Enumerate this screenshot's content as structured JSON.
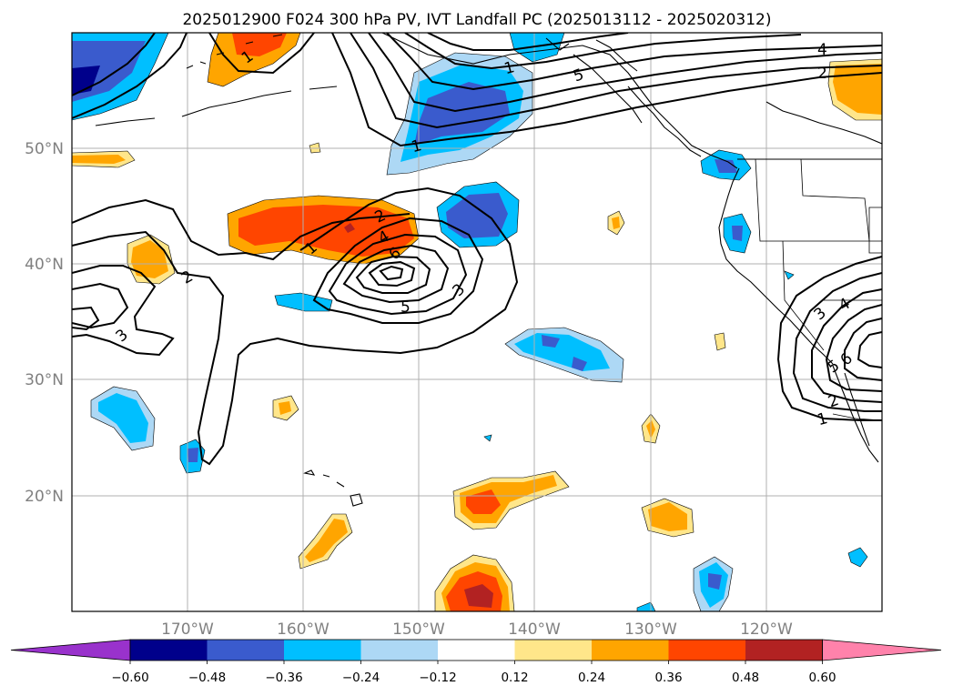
{
  "title": "2025012900 F024 300 hPa PV, IVT Landfall PC (2025013112 - 2025020312)",
  "lat_labels": [
    "50°N",
    "40°N",
    "30°N",
    "20°N"
  ],
  "lon_labels": [
    "170°W",
    "160°W",
    "150°W",
    "140°W",
    "130°W",
    "120°W"
  ],
  "colorbar": {
    "colors": [
      "#9932cc",
      "#00008b",
      "#3a5bcd",
      "#00bfff",
      "#add8f5",
      "#ffffff",
      "#ffe68a",
      "#ffa500",
      "#ff4500",
      "#b22222",
      "#ff82ab"
    ],
    "tick_labels": [
      "−0.60",
      "−0.48",
      "−0.36",
      "−0.24",
      "−0.12",
      "0.12",
      "0.24",
      "0.36",
      "0.48",
      "0.60"
    ]
  },
  "contour_labels": {
    "nw1": "1",
    "n1": "1",
    "ne4": "4",
    "ne2": "2",
    "ne5": "5",
    "c1": "1",
    "c2": "2",
    "c4": "4",
    "c6": "6",
    "c5": "5",
    "c3": "3",
    "w2": "2",
    "w3": "3",
    "e3": "3",
    "e4": "4",
    "e6": "6",
    "e5": "5",
    "e2": "2",
    "e1": "1"
  }
}
